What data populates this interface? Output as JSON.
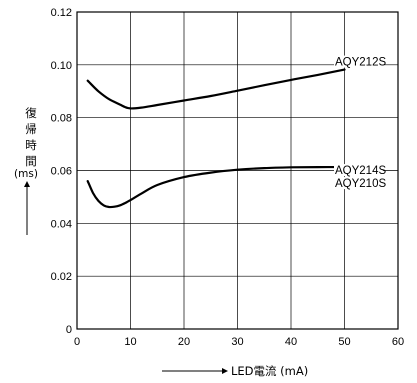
{
  "chart_data": {
    "type": "line",
    "xlabel": "LED電流 (mA)",
    "ylabel": {
      "chars": [
        "復",
        "帰",
        "時",
        "間"
      ],
      "unit": "(ms)"
    },
    "xlim": [
      0,
      60
    ],
    "ylim": [
      0,
      0.12
    ],
    "x_ticks": [
      0,
      10,
      20,
      30,
      40,
      50,
      60
    ],
    "x_tick_labels": [
      "0",
      "10",
      "20",
      "30",
      "40",
      "50",
      "60"
    ],
    "y_ticks": [
      0,
      0.02,
      0.04,
      0.06,
      0.08,
      0.1,
      0.12
    ],
    "y_tick_labels": [
      "0",
      "0.02",
      "0.04",
      "0.06",
      "0.08",
      "0.10",
      "0.12"
    ],
    "grid": true,
    "series": [
      {
        "labels": [
          "AQY212S"
        ],
        "x": [
          2,
          4,
          6,
          8,
          9,
          10,
          12,
          15,
          20,
          25,
          30,
          35,
          40,
          45,
          50
        ],
        "y": [
          0.094,
          0.09,
          0.087,
          0.085,
          0.084,
          0.0835,
          0.0838,
          0.0848,
          0.0865,
          0.0882,
          0.0902,
          0.0923,
          0.0943,
          0.0962,
          0.0982
        ]
      },
      {
        "labels": [
          "AQY214S",
          "AQY210S"
        ],
        "x": [
          2,
          3,
          4,
          5,
          6,
          7,
          8,
          9,
          10,
          12,
          15,
          20,
          25,
          30,
          35,
          40,
          45,
          50
        ],
        "y": [
          0.056,
          0.0515,
          0.0485,
          0.0468,
          0.0462,
          0.0463,
          0.0468,
          0.0477,
          0.0488,
          0.0512,
          0.0545,
          0.0575,
          0.0592,
          0.0603,
          0.0609,
          0.0612,
          0.0613,
          0.0613
        ]
      }
    ]
  }
}
